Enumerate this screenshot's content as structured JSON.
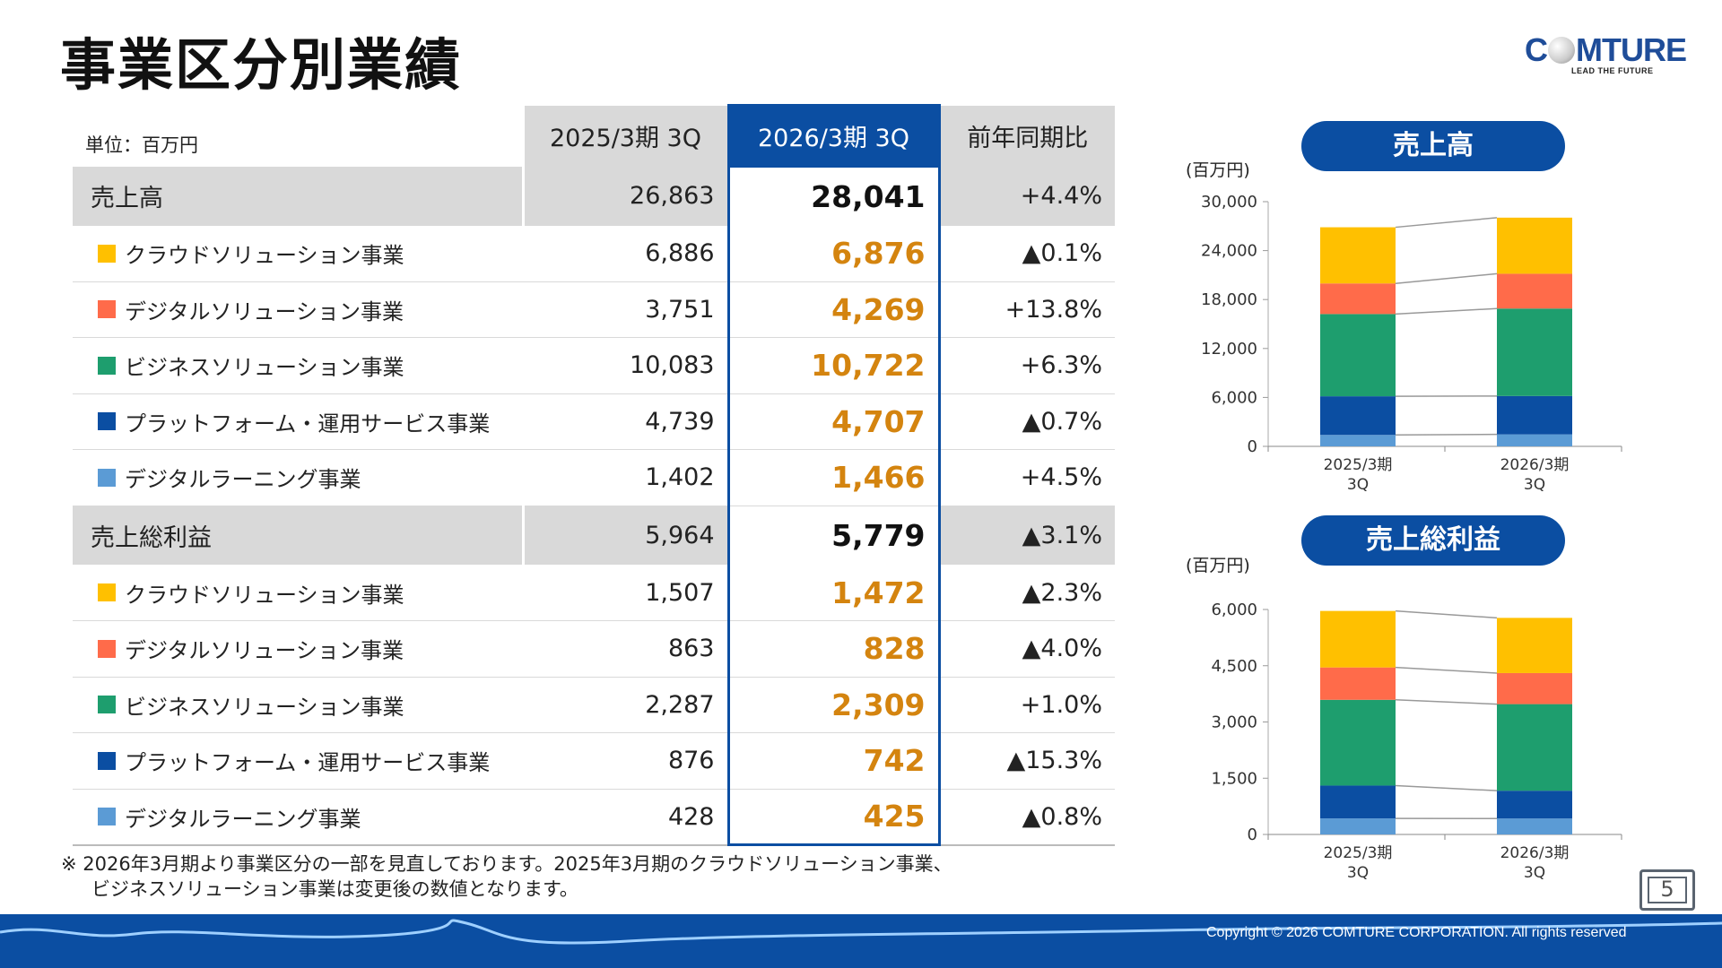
{
  "title": "事業区分別業績",
  "logo": {
    "text": "COMTURE",
    "tagline": "LEAD THE FUTURE"
  },
  "table": {
    "unit": "単位：百万円",
    "columns": [
      "2025/3期 3Q",
      "2026/3期 3Q",
      "前年同期比"
    ],
    "sections": [
      {
        "label": "売上高",
        "prev": "26,863",
        "curr": "28,041",
        "yoy": "+4.4%",
        "rows": [
          {
            "label": "クラウドソリューション事業",
            "color": "#FFC000",
            "prev": "6,886",
            "curr": "6,876",
            "yoy": "▲0.1%"
          },
          {
            "label": "デジタルソリューション事業",
            "color": "#FF6B4A",
            "prev": "3,751",
            "curr": "4,269",
            "yoy": "+13.8%"
          },
          {
            "label": "ビジネスソリューション事業",
            "color": "#1E9E6E",
            "prev": "10,083",
            "curr": "10,722",
            "yoy": "+6.3%"
          },
          {
            "label": "プラットフォーム・運用サービス事業",
            "color": "#0B4EA2",
            "prev": "4,739",
            "curr": "4,707",
            "yoy": "▲0.7%"
          },
          {
            "label": "デジタルラーニング事業",
            "color": "#5B9BD5",
            "prev": "1,402",
            "curr": "1,466",
            "yoy": "+4.5%"
          }
        ]
      },
      {
        "label": "売上総利益",
        "prev": "5,964",
        "curr": "5,779",
        "yoy": "▲3.1%",
        "rows": [
          {
            "label": "クラウドソリューション事業",
            "color": "#FFC000",
            "prev": "1,507",
            "curr": "1,472",
            "yoy": "▲2.3%"
          },
          {
            "label": "デジタルソリューション事業",
            "color": "#FF6B4A",
            "prev": "863",
            "curr": "828",
            "yoy": "▲4.0%"
          },
          {
            "label": "ビジネスソリューション事業",
            "color": "#1E9E6E",
            "prev": "2,287",
            "curr": "2,309",
            "yoy": "+1.0%"
          },
          {
            "label": "プラットフォーム・運用サービス事業",
            "color": "#0B4EA2",
            "prev": "876",
            "curr": "742",
            "yoy": "▲15.3%"
          },
          {
            "label": "デジタルラーニング事業",
            "color": "#5B9BD5",
            "prev": "428",
            "curr": "425",
            "yoy": "▲0.8%"
          }
        ]
      }
    ]
  },
  "note": [
    "※ 2026年3月期より事業区分の一部を見直しております。2025年3月期のクラウドソリューション事業、",
    "ビジネスソリューション事業は変更後の数値となります。"
  ],
  "chart_data": [
    {
      "type": "bar",
      "stacked": true,
      "title": "売上高",
      "ylabel": "(百万円)",
      "ylim": [
        0,
        30000
      ],
      "yticks": [
        "0",
        "6,000",
        "12,000",
        "18,000",
        "24,000",
        "30,000"
      ],
      "categories": [
        "2025/3期\n3Q",
        "2026/3期\n3Q"
      ],
      "series": [
        {
          "color": "#5B9BD5",
          "values": [
            1402,
            1466
          ]
        },
        {
          "color": "#0B4EA2",
          "values": [
            4739,
            4707
          ]
        },
        {
          "color": "#1E9E6E",
          "values": [
            10083,
            10722
          ]
        },
        {
          "color": "#FF6B4A",
          "values": [
            3751,
            4269
          ]
        },
        {
          "color": "#FFC000",
          "values": [
            6886,
            6876
          ]
        }
      ]
    },
    {
      "type": "bar",
      "stacked": true,
      "title": "売上総利益",
      "ylabel": "(百万円)",
      "ylim": [
        0,
        6000
      ],
      "yticks": [
        "0",
        "1,500",
        "3,000",
        "4,500",
        "6,000"
      ],
      "categories": [
        "2025/3期\n3Q",
        "2026/3期\n3Q"
      ],
      "series": [
        {
          "color": "#5B9BD5",
          "values": [
            428,
            425
          ]
        },
        {
          "color": "#0B4EA2",
          "values": [
            876,
            742
          ]
        },
        {
          "color": "#1E9E6E",
          "values": [
            2287,
            2309
          ]
        },
        {
          "color": "#FF6B4A",
          "values": [
            863,
            828
          ]
        },
        {
          "color": "#FFC000",
          "values": [
            1507,
            1472
          ]
        }
      ]
    }
  ],
  "footer": {
    "copyright": "Copyright © 2026 COMTURE CORPORATION. All rights reserved",
    "page": "5"
  }
}
